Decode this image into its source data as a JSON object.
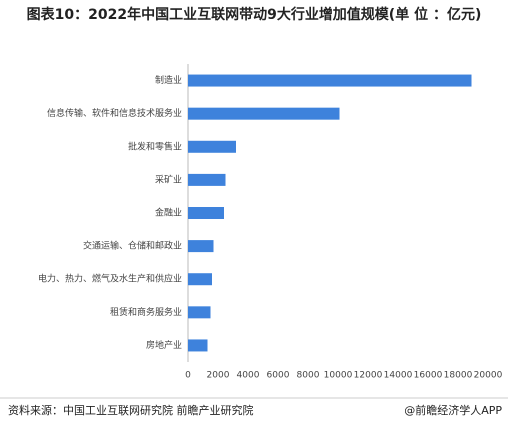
{
  "chart_data": {
    "type": "hbar",
    "title": "图表10：2022年中国工业互联网带动9大行业增加值规模(单 位 ：亿元)",
    "categories": [
      "制造业",
      "信息传输、软件和信息技术服务业",
      "批发和零售业",
      "采矿业",
      "金融业",
      "交通运输、仓储和邮政业",
      "电力、热力、燃气及水生产和供应业",
      "租赁和商务服务业",
      "房地产业"
    ],
    "values": [
      18900,
      10100,
      3200,
      2500,
      2400,
      1700,
      1600,
      1500,
      1300
    ],
    "color": "#3e82dc",
    "xlim": [
      0,
      20000
    ],
    "xticks": [
      0,
      2000,
      4000,
      6000,
      8000,
      10000,
      12000,
      14000,
      16000,
      18000,
      20000
    ],
    "source": "资料来源：中国工业互联网研究院 前瞻产业研究院",
    "credit": "@前瞻经济学人APP"
  }
}
